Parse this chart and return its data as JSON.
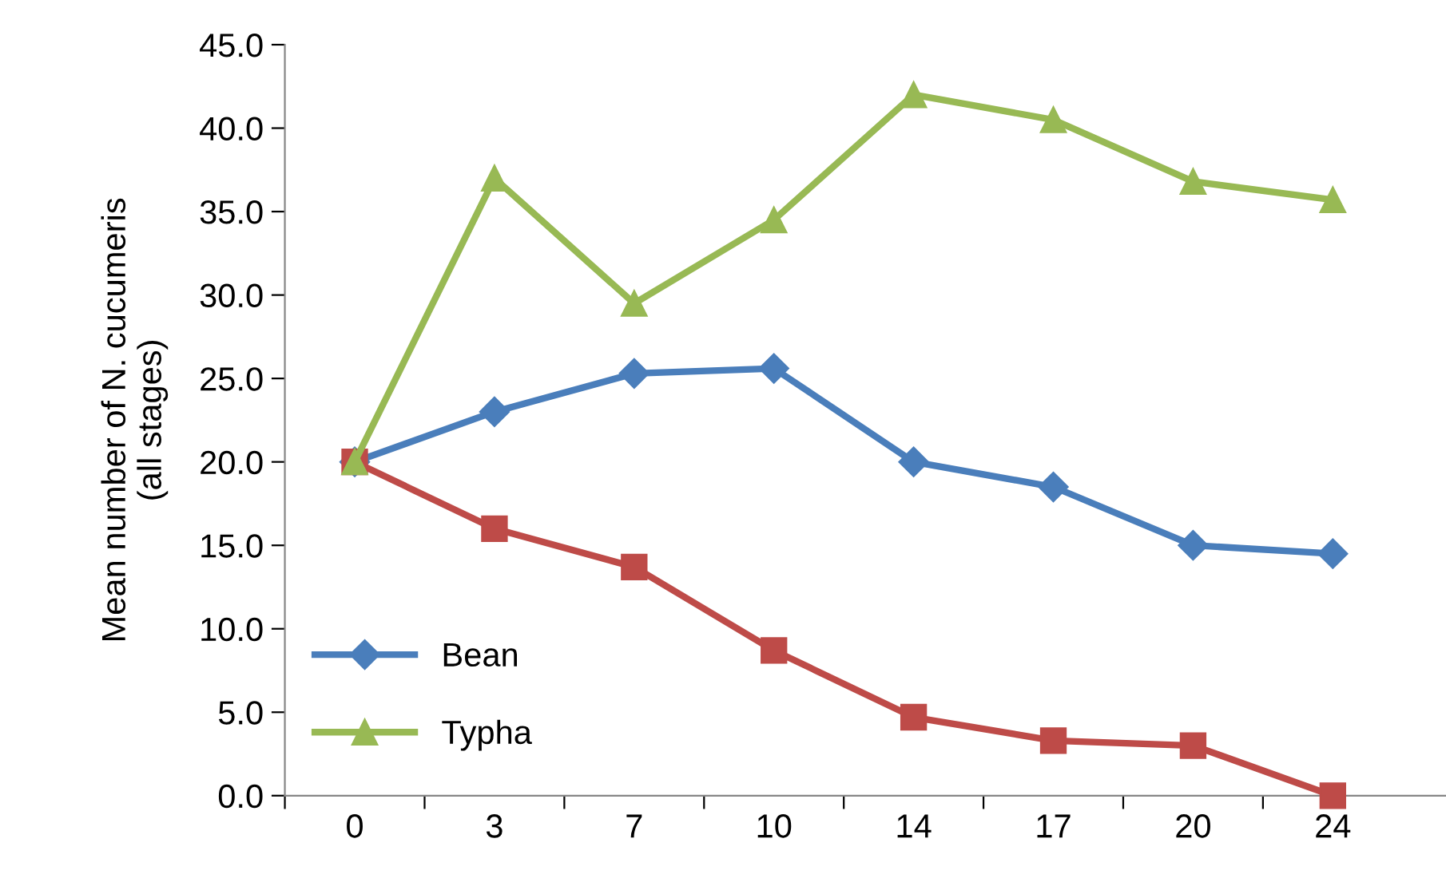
{
  "chart_data": {
    "type": "line",
    "ylabel": "Mean number of N. cucumeris\n(all stages)",
    "categories": [
      "0",
      "3",
      "7",
      "10",
      "14",
      "17",
      "20",
      "24"
    ],
    "series": [
      {
        "name": "Bean",
        "color": "#4a7ebb",
        "marker": "diamond",
        "values": [
          20.0,
          23.0,
          25.3,
          25.6,
          20.0,
          18.5,
          15.0,
          14.5
        ]
      },
      {
        "color": "#be4b48",
        "marker": "square",
        "values": [
          20.0,
          16.0,
          13.7,
          8.7,
          4.7,
          3.3,
          3.0,
          0.0
        ]
      },
      {
        "name": "Typha",
        "color": "#98b954",
        "marker": "triangle",
        "values": [
          20.0,
          37.0,
          29.5,
          34.5,
          42.0,
          40.5,
          36.8,
          35.7
        ]
      }
    ],
    "ylim": [
      0,
      45
    ],
    "yticks": [
      {
        "value": 0,
        "label": "0.0"
      },
      {
        "value": 5,
        "label": "5.0"
      },
      {
        "value": 10,
        "label": "10.0"
      },
      {
        "value": 15,
        "label": "15.0"
      },
      {
        "value": 20,
        "label": "20.0"
      },
      {
        "value": 25,
        "label": "25.0"
      },
      {
        "value": 30,
        "label": "30.0"
      },
      {
        "value": 35,
        "label": "35.0"
      },
      {
        "value": 40,
        "label": "40.0"
      },
      {
        "value": 45,
        "label": "45.0"
      }
    ],
    "grid": false,
    "legend": "lower left",
    "line_style": "solid"
  }
}
